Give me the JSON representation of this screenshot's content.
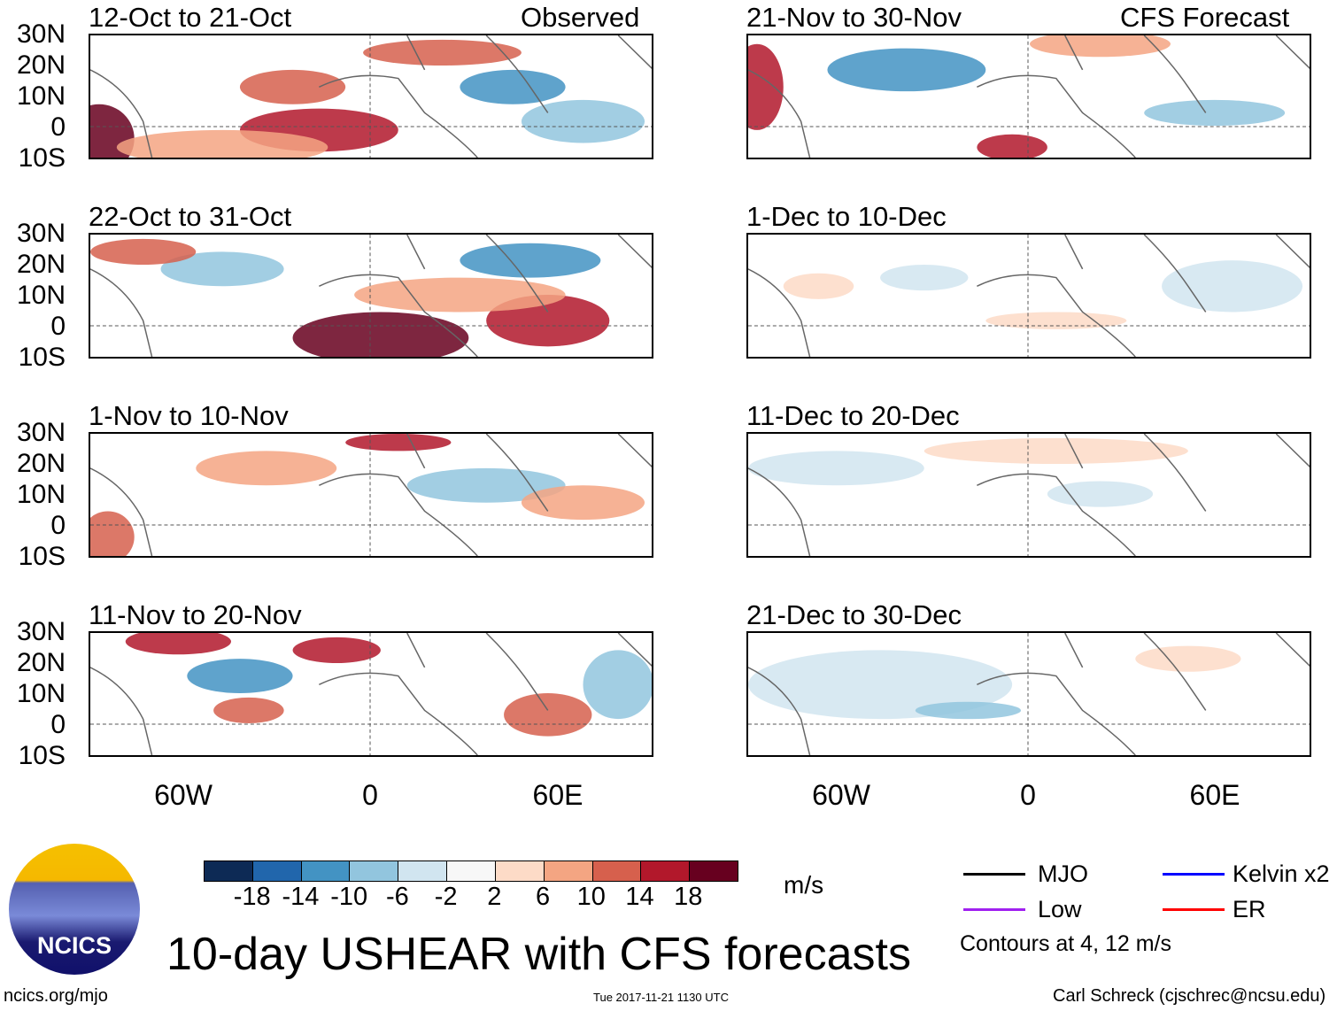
{
  "column_headers": {
    "left": "Observed",
    "right": "CFS Forecast"
  },
  "panels": [
    {
      "title": "12-Oct to 21-Oct",
      "column": "Observed"
    },
    {
      "title": "22-Oct to 31-Oct",
      "column": "Observed"
    },
    {
      "title": "1-Nov to 10-Nov",
      "column": "Observed"
    },
    {
      "title": "11-Nov to 20-Nov",
      "column": "Observed"
    },
    {
      "title": "21-Nov to 30-Nov",
      "column": "CFS Forecast"
    },
    {
      "title": "1-Dec to 10-Dec",
      "column": "CFS Forecast"
    },
    {
      "title": "11-Dec to 20-Dec",
      "column": "CFS Forecast"
    },
    {
      "title": "21-Dec to 30-Dec",
      "column": "CFS Forecast"
    }
  ],
  "lat_labels": [
    "30N",
    "20N",
    "10N",
    "0",
    "10S"
  ],
  "lon_labels": [
    "60W",
    "0",
    "60E"
  ],
  "colorbar": {
    "labels": [
      "-18",
      "-14",
      "-10",
      "-6",
      "-2",
      "2",
      "6",
      "10",
      "14",
      "18"
    ],
    "colors": [
      "#0d2a55",
      "#2166ac",
      "#4393c3",
      "#92c5de",
      "#d1e5f0",
      "#f7f7f7",
      "#fddbc7",
      "#f4a582",
      "#d6604d",
      "#b2182b",
      "#67001f"
    ],
    "units": "m/s"
  },
  "legend": {
    "items": [
      {
        "label": "MJO",
        "color": "#000000"
      },
      {
        "label": "Kelvin x2",
        "color": "#0000ff"
      },
      {
        "label": "Low",
        "color": "#a020f0"
      },
      {
        "label": "ER",
        "color": "#ff0000"
      }
    ],
    "note": "Contours at 4, 12 m/s"
  },
  "logo_text": "NCICS",
  "title": "10-day USHEAR with CFS forecasts",
  "footer": {
    "url": "ncics.org/mjo",
    "timestamp": "Tue 2017-11-21 1130 UTC",
    "author": "Carl Schreck (cjschrec@ncsu.edu)"
  }
}
